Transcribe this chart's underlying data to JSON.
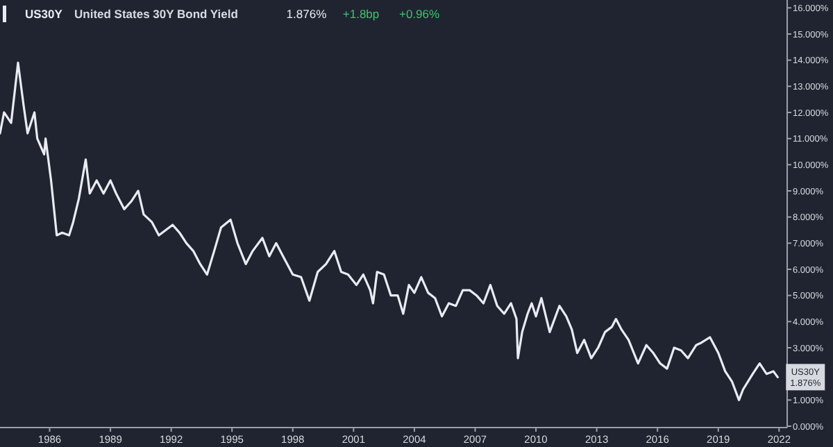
{
  "chart_data": {
    "type": "line",
    "title": "United States 30Y Bond Yield",
    "annotations": [
      "US30Y",
      "1.876%",
      "+1.8bp",
      "+0.96%",
      {
        "text": "US30Y\n1.876%",
        "x": 2021.93,
        "y": 1.876
      }
    ],
    "x": [
      1983.55,
      1983.75,
      1984.1,
      1984.44,
      1984.71,
      1984.91,
      1985.25,
      1985.39,
      1985.73,
      1985.8,
      1986.07,
      1986.35,
      1986.62,
      1986.96,
      1987.16,
      1987.44,
      1987.78,
      1987.98,
      1988.32,
      1988.66,
      1989,
      1989.28,
      1989.68,
      1990.03,
      1990.37,
      1990.64,
      1991.05,
      1991.39,
      1991.73,
      1992.07,
      1992.41,
      1992.75,
      1993.09,
      1993.43,
      1993.77,
      1994.12,
      1994.46,
      1994.93,
      1995.27,
      1995.68,
      1996.02,
      1996.5,
      1996.84,
      1997.18,
      1997.52,
      1998,
      1998.41,
      1998.82,
      1999.23,
      1999.64,
      2000.05,
      2000.39,
      2000.73,
      2001.14,
      2001.48,
      2001.82,
      2001.96,
      2002.16,
      2002.5,
      2002.84,
      2003.18,
      2003.45,
      2003.73,
      2004,
      2004.34,
      2004.68,
      2005.02,
      2005.36,
      2005.7,
      2006.05,
      2006.39,
      2006.73,
      2007.07,
      2007.41,
      2007.75,
      2008.09,
      2008.43,
      2008.77,
      2009.04,
      2009.11,
      2009.32,
      2009.59,
      2009.79,
      2010,
      2010.27,
      2010.68,
      2011.16,
      2011.5,
      2011.77,
      2012.04,
      2012.38,
      2012.73,
      2013.07,
      2013.41,
      2013.75,
      2013.95,
      2014.22,
      2014.57,
      2015.04,
      2015.45,
      2015.79,
      2016.13,
      2016.47,
      2016.82,
      2017.16,
      2017.5,
      2017.91,
      2018.18,
      2018.59,
      2019,
      2019.34,
      2019.68,
      2020.02,
      2020.22,
      2020.7,
      2021.04,
      2021.38,
      2021.72,
      2021.93
    ],
    "series": [
      {
        "color": "#e8ecf2",
        "values": [
          11.2,
          12.0,
          11.6,
          13.9,
          12.3,
          11.2,
          12.0,
          11.0,
          10.4,
          11.0,
          9.4,
          7.3,
          7.4,
          7.3,
          7.8,
          8.7,
          10.2,
          8.9,
          9.4,
          8.9,
          9.4,
          8.9,
          8.3,
          8.6,
          9.0,
          8.1,
          7.8,
          7.3,
          7.5,
          7.7,
          7.4,
          7.0,
          6.7,
          6.2,
          5.8,
          6.7,
          7.6,
          7.9,
          7.0,
          6.2,
          6.7,
          7.2,
          6.5,
          7.0,
          6.5,
          5.8,
          5.7,
          4.8,
          5.9,
          6.2,
          6.7,
          5.9,
          5.8,
          5.4,
          5.8,
          5.2,
          4.7,
          5.9,
          5.8,
          5.0,
          5.0,
          4.3,
          5.4,
          5.1,
          5.7,
          5.1,
          4.9,
          4.2,
          4.7,
          4.6,
          5.2,
          5.2,
          5.0,
          4.7,
          5.4,
          4.6,
          4.3,
          4.7,
          4.1,
          2.6,
          3.6,
          4.3,
          4.7,
          4.2,
          4.9,
          3.6,
          4.6,
          4.2,
          3.7,
          2.8,
          3.3,
          2.6,
          3.0,
          3.6,
          3.8,
          4.1,
          3.7,
          3.3,
          2.4,
          3.1,
          2.8,
          2.4,
          2.2,
          3.0,
          2.9,
          2.6,
          3.1,
          3.2,
          3.4,
          2.8,
          2.1,
          1.7,
          1.0,
          1.4,
          2.0,
          2.4,
          2.0,
          2.1,
          1.876
        ]
      }
    ],
    "xlim": [
      1983.55,
      2022.4
    ],
    "xticks": [
      1986,
      1989,
      1992,
      1995,
      1998,
      2001,
      2004,
      2007,
      2010,
      2013,
      2016,
      2019,
      2022
    ],
    "ylim": [
      0,
      16.3
    ],
    "yticks": [
      {
        "value": 0,
        "label": "0.000%"
      },
      {
        "value": 1,
        "label": "1.000%"
      },
      {
        "value": 2,
        "label": null
      },
      {
        "value": 3,
        "label": "3.000%"
      },
      {
        "value": 4,
        "label": "4.000%"
      },
      {
        "value": 5,
        "label": "5.000%"
      },
      {
        "value": 6,
        "label": "6.000%"
      },
      {
        "value": 7,
        "label": "7.000%"
      },
      {
        "value": 8,
        "label": "8.000%"
      },
      {
        "value": 9,
        "label": "9.000%"
      },
      {
        "value": 10,
        "label": "10.000%"
      },
      {
        "value": 11,
        "label": "11.000%"
      },
      {
        "value": 12,
        "label": "12.000%"
      },
      {
        "value": 13,
        "label": "13.000%"
      },
      {
        "value": 14,
        "label": "14.000%"
      },
      {
        "value": 15,
        "label": "15.000%"
      },
      {
        "value": 16,
        "label": "16.000%"
      }
    ],
    "grid": false,
    "marker": "none",
    "line_style": "solid"
  }
}
